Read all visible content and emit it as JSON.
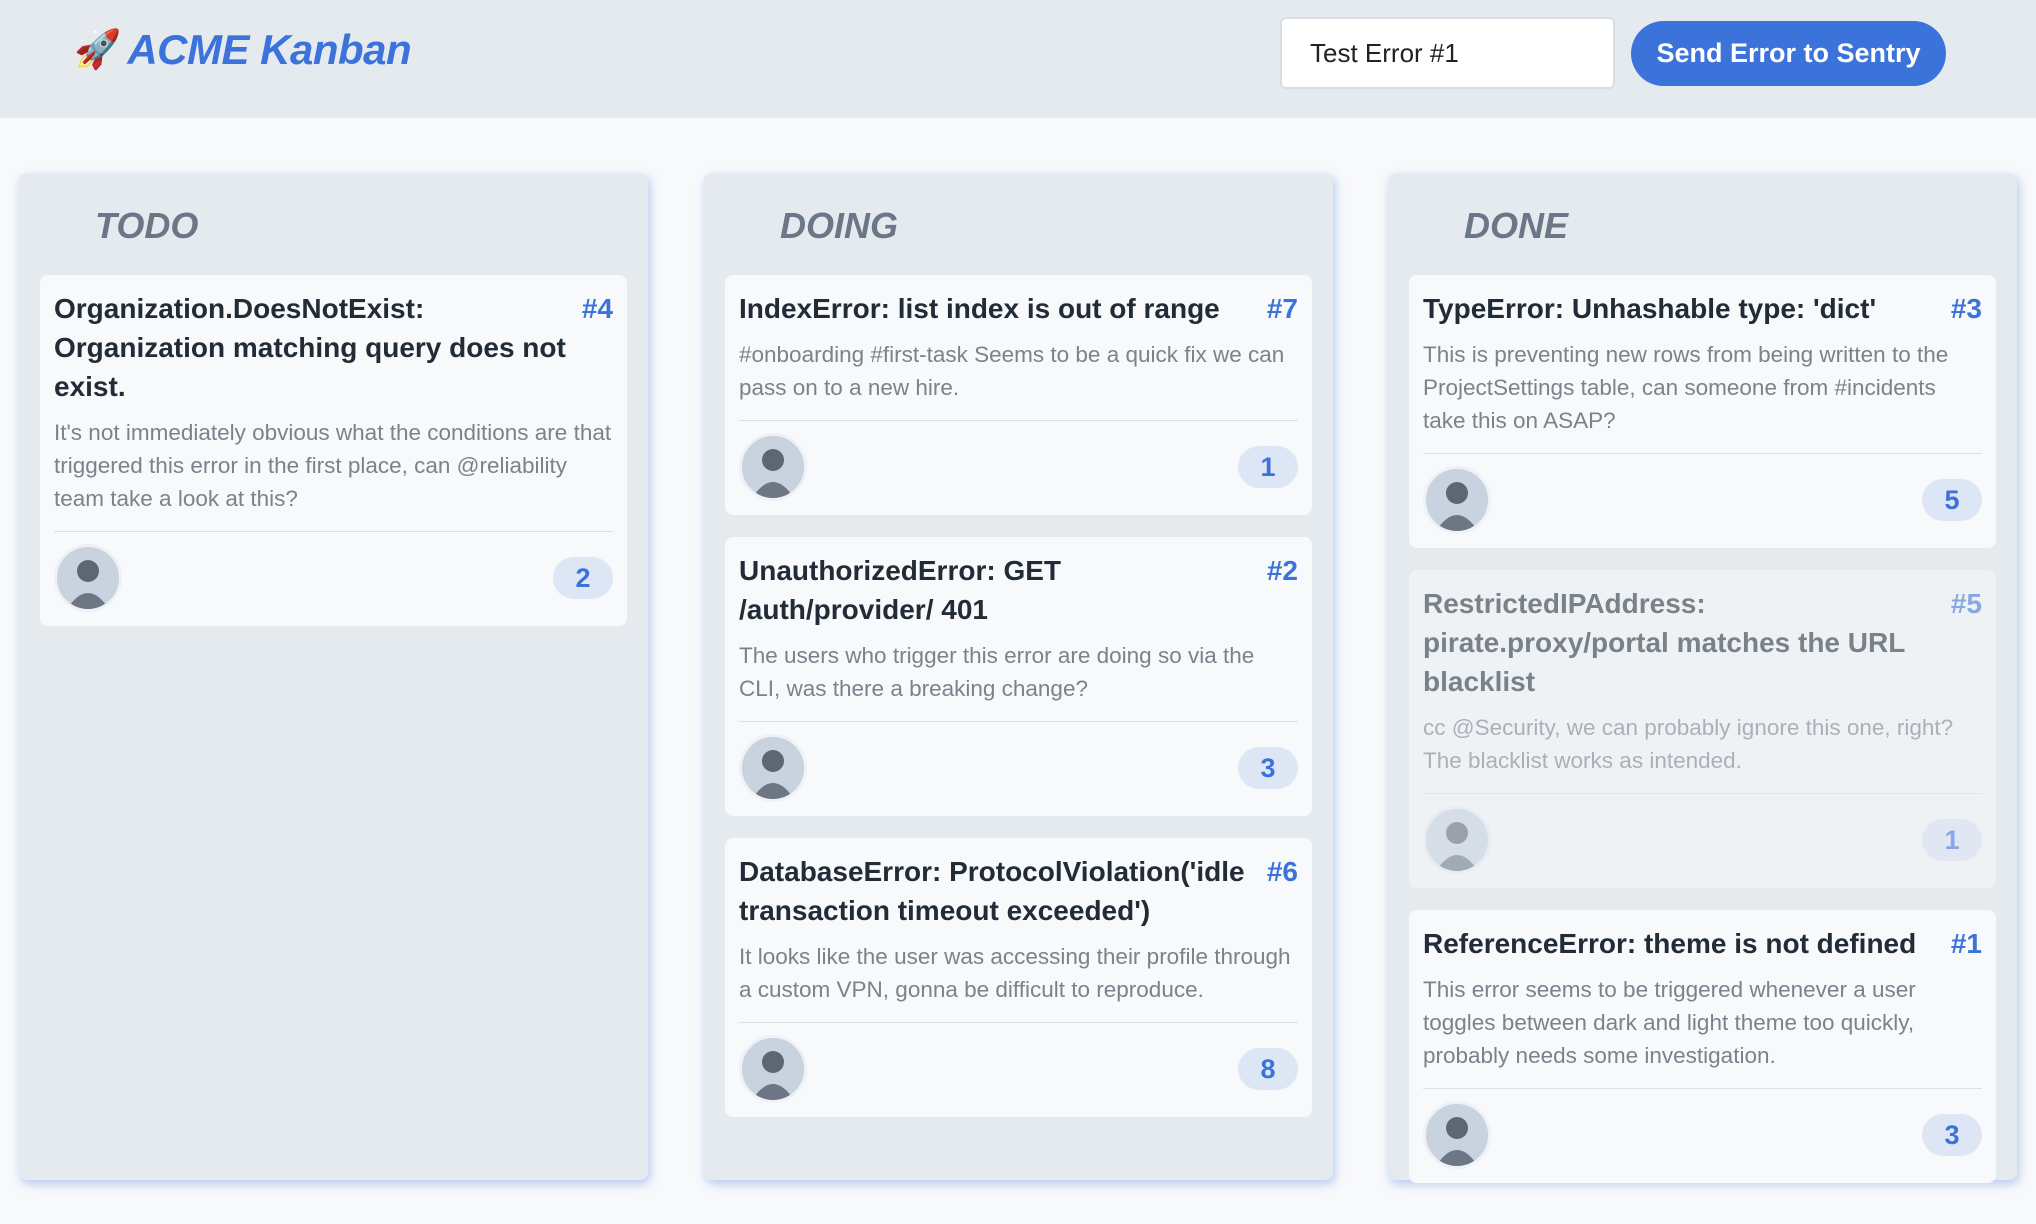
{
  "header": {
    "title": "ACME Kanban",
    "logo_icon": "rocket-icon",
    "input_value": "Test Error #1",
    "send_button": "Send Error to Sentry"
  },
  "colors": {
    "accent": "#3b73db",
    "column_bg": "#e5eaef",
    "header_bg": "#e5eaef"
  },
  "columns": [
    {
      "title": "TODO",
      "cards": [
        {
          "title": "Organization.DoesNotExist: Organization matching query does not exist.",
          "id": "#4",
          "body": "It's not immediately obvious what the conditions are that triggered this error in the first place, can @reliability team take a look at this?",
          "count": "2",
          "faded": false
        }
      ]
    },
    {
      "title": "DOING",
      "cards": [
        {
          "title": "IndexError: list index is out of range",
          "id": "#7",
          "body": "#onboarding #first-task Seems to be a quick fix we can pass on to a new hire.",
          "count": "1",
          "faded": false
        },
        {
          "title": "UnauthorizedError: GET /auth/provider/ 401",
          "id": "#2",
          "body": "The users who trigger this error are doing so via the CLI, was there a breaking change?",
          "count": "3",
          "faded": false
        },
        {
          "title": "DatabaseError: ProtocolViolation('idle transaction timeout exceeded')",
          "id": "#6",
          "body": "It looks like the user was accessing their profile through a custom VPN, gonna be difficult to reproduce.",
          "count": "8",
          "faded": false
        }
      ]
    },
    {
      "title": "DONE",
      "cards": [
        {
          "title": "TypeError: Unhashable type: 'dict'",
          "id": "#3",
          "body": "This is preventing new rows from being written to the ProjectSettings table, can someone from #incidents take this on ASAP?",
          "count": "5",
          "faded": false
        },
        {
          "title": "RestrictedIPAddress: pirate.proxy/portal matches the URL blacklist",
          "id": "#5",
          "body": "cc @Security, we can probably ignore this one, right? The blacklist works as intended.",
          "count": "1",
          "faded": true
        },
        {
          "title": "ReferenceError: theme is not defined",
          "id": "#1",
          "body": "This error seems to be triggered whenever a user toggles between dark and light theme too quickly, probably needs some investigation.",
          "count": "3",
          "faded": false
        }
      ]
    }
  ]
}
